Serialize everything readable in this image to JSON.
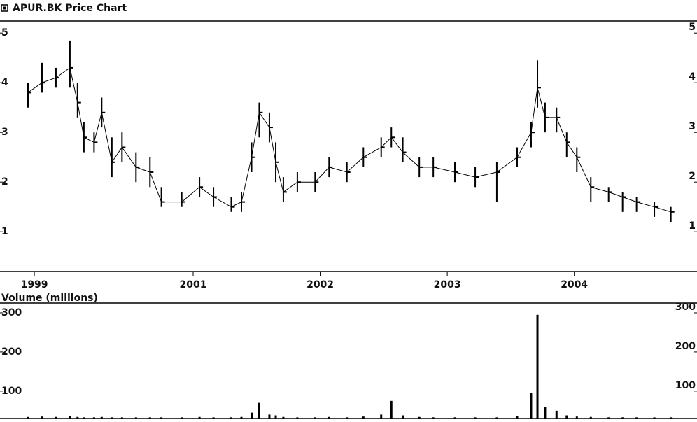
{
  "chart_data": [
    {
      "type": "hlc",
      "title": "APUR.BK Price Chart",
      "color": "#000000",
      "x": [
        1999.7,
        1999.81,
        1999.92,
        2000.03,
        2000.09,
        2000.14,
        2000.22,
        2000.28,
        2000.36,
        2000.44,
        2000.55,
        2000.66,
        2000.75,
        2000.91,
        2001.05,
        2001.16,
        2001.3,
        2001.38,
        2001.46,
        2001.52,
        2001.6,
        2001.65,
        2001.71,
        2001.82,
        2001.96,
        2002.07,
        2002.21,
        2002.34,
        2002.48,
        2002.56,
        2002.65,
        2002.78,
        2002.89,
        2003.06,
        2003.22,
        2003.39,
        2003.55,
        2003.66,
        2003.71,
        2003.77,
        2003.86,
        2003.94,
        2004.02,
        2004.13,
        2004.27,
        2004.38,
        2004.49,
        2004.63,
        2004.76
      ],
      "high": [
        4.0,
        4.4,
        4.3,
        4.85,
        4.0,
        3.2,
        3.0,
        3.7,
        2.9,
        3.0,
        2.6,
        2.5,
        1.9,
        1.8,
        2.1,
        1.9,
        1.7,
        1.8,
        2.8,
        3.6,
        3.4,
        2.8,
        2.1,
        2.2,
        2.2,
        2.5,
        2.4,
        2.7,
        2.9,
        3.1,
        2.9,
        2.5,
        2.5,
        2.4,
        2.3,
        2.4,
        2.7,
        3.2,
        4.45,
        3.6,
        3.5,
        3.0,
        2.7,
        2.1,
        1.9,
        1.8,
        1.7,
        1.6,
        1.5
      ],
      "low": [
        3.5,
        3.8,
        3.9,
        3.9,
        3.3,
        2.6,
        2.6,
        3.1,
        2.1,
        2.4,
        2.0,
        1.9,
        1.5,
        1.5,
        1.7,
        1.5,
        1.4,
        1.4,
        2.2,
        2.9,
        2.8,
        2.0,
        1.6,
        1.8,
        1.8,
        2.1,
        2.0,
        2.3,
        2.5,
        2.7,
        2.4,
        2.1,
        2.1,
        2.0,
        1.9,
        1.6,
        2.3,
        2.7,
        3.5,
        3.0,
        3.0,
        2.5,
        2.2,
        1.6,
        1.6,
        1.4,
        1.4,
        1.3,
        1.2
      ],
      "close": [
        3.8,
        4.0,
        4.1,
        4.3,
        3.6,
        2.9,
        2.8,
        3.4,
        2.4,
        2.7,
        2.3,
        2.2,
        1.6,
        1.6,
        1.9,
        1.7,
        1.5,
        1.6,
        2.5,
        3.4,
        3.1,
        2.4,
        1.8,
        2.0,
        2.0,
        2.3,
        2.2,
        2.5,
        2.7,
        2.9,
        2.6,
        2.3,
        2.3,
        2.2,
        2.1,
        2.2,
        2.5,
        3.0,
        3.9,
        3.3,
        3.3,
        2.8,
        2.5,
        1.9,
        1.8,
        1.7,
        1.6,
        1.5,
        1.4
      ],
      "xlim": [
        1999.7,
        2004.85
      ],
      "xticks": [
        {
          "value": 1999.75,
          "label": "1999"
        },
        2001,
        2002,
        2003,
        2004
      ],
      "ylim": [
        0.2,
        5.2
      ],
      "yticks": [
        1,
        2,
        3,
        4,
        5
      ],
      "y2ticks": [
        1,
        2,
        3,
        4,
        5
      ]
    },
    {
      "type": "bar",
      "title": "Volume (millions)",
      "color": "#000000",
      "x": [
        1999.7,
        1999.81,
        1999.92,
        2000.03,
        2000.09,
        2000.14,
        2000.22,
        2000.28,
        2000.36,
        2000.44,
        2000.55,
        2000.66,
        2000.75,
        2000.91,
        2001.05,
        2001.16,
        2001.3,
        2001.38,
        2001.46,
        2001.52,
        2001.6,
        2001.65,
        2001.71,
        2001.82,
        2001.96,
        2002.07,
        2002.21,
        2002.34,
        2002.48,
        2002.56,
        2002.65,
        2002.78,
        2002.89,
        2003.06,
        2003.22,
        2003.39,
        2003.55,
        2003.66,
        2003.71,
        2003.77,
        2003.86,
        2003.94,
        2004.02,
        2004.13,
        2004.27,
        2004.38,
        2004.49,
        2004.63,
        2004.76
      ],
      "values": [
        34,
        35,
        34,
        36,
        34,
        33,
        33,
        34,
        33,
        33,
        33,
        33,
        33,
        33,
        34,
        33,
        33,
        34,
        45,
        70,
        40,
        38,
        34,
        33,
        33,
        34,
        33,
        35,
        40,
        75,
        38,
        34,
        33,
        33,
        33,
        33,
        36,
        95,
        295,
        60,
        50,
        38,
        35,
        34,
        33,
        33,
        33,
        33,
        33
      ],
      "xlim": [
        1999.7,
        2004.85
      ],
      "ylim": [
        30,
        325
      ],
      "yticks": [
        100,
        200,
        300
      ],
      "y2ticks": [
        100,
        200,
        300
      ]
    }
  ]
}
